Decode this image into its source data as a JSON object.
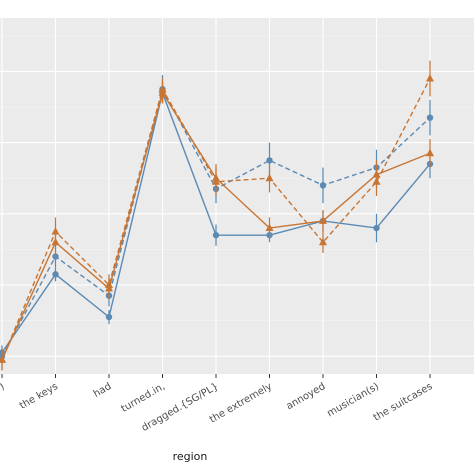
{
  "chart_data": {
    "type": "line",
    "xlabel": "region",
    "ylabel": "",
    "categories": [
      "(NP)",
      "the keys",
      "had",
      "turned.in,",
      "dragged.{SG/PL}",
      "the extremely",
      "annoyed",
      "musician(s)",
      "the suitcases"
    ],
    "first_tick_label_visible": ")",
    "ylim": [
      0,
      1
    ],
    "grid": true,
    "legend": "none",
    "series": [
      {
        "color": "#5b8ab5",
        "line": "solid",
        "marker": "circle",
        "values": [
          0.06,
          0.28,
          0.16,
          0.79,
          0.39,
          0.39,
          0.43,
          0.41,
          0.59
        ],
        "errors": [
          0.02,
          0.02,
          0.02,
          0.03,
          0.03,
          0.02,
          0.03,
          0.04,
          0.04
        ]
      },
      {
        "color": "#5b8ab5",
        "line": "dashed",
        "marker": "circle",
        "values": [
          0.05,
          0.33,
          0.22,
          0.8,
          0.52,
          0.6,
          0.53,
          0.58,
          0.72
        ],
        "errors": [
          0.02,
          0.03,
          0.03,
          0.04,
          0.04,
          0.05,
          0.05,
          0.05,
          0.05
        ]
      },
      {
        "color": "#c87533",
        "line": "solid",
        "marker": "triangle",
        "values": [
          0.04,
          0.37,
          0.24,
          0.79,
          0.55,
          0.41,
          0.43,
          0.56,
          0.62
        ],
        "errors": [
          0.03,
          0.04,
          0.03,
          0.03,
          0.04,
          0.03,
          0.03,
          0.04,
          0.04
        ]
      },
      {
        "color": "#c87533",
        "line": "dashed",
        "marker": "triangle",
        "values": [
          0.04,
          0.4,
          0.25,
          0.8,
          0.54,
          0.55,
          0.37,
          0.54,
          0.83
        ],
        "errors": [
          0.03,
          0.04,
          0.03,
          0.03,
          0.04,
          0.04,
          0.03,
          0.04,
          0.05
        ]
      }
    ]
  },
  "colors": {
    "panel_background": "#ebebeb",
    "gridline_major": "#ffffff",
    "gridline_minor": "#f5f5f5",
    "blue_series": "#5b8ab5",
    "orange_series": "#c87533"
  }
}
